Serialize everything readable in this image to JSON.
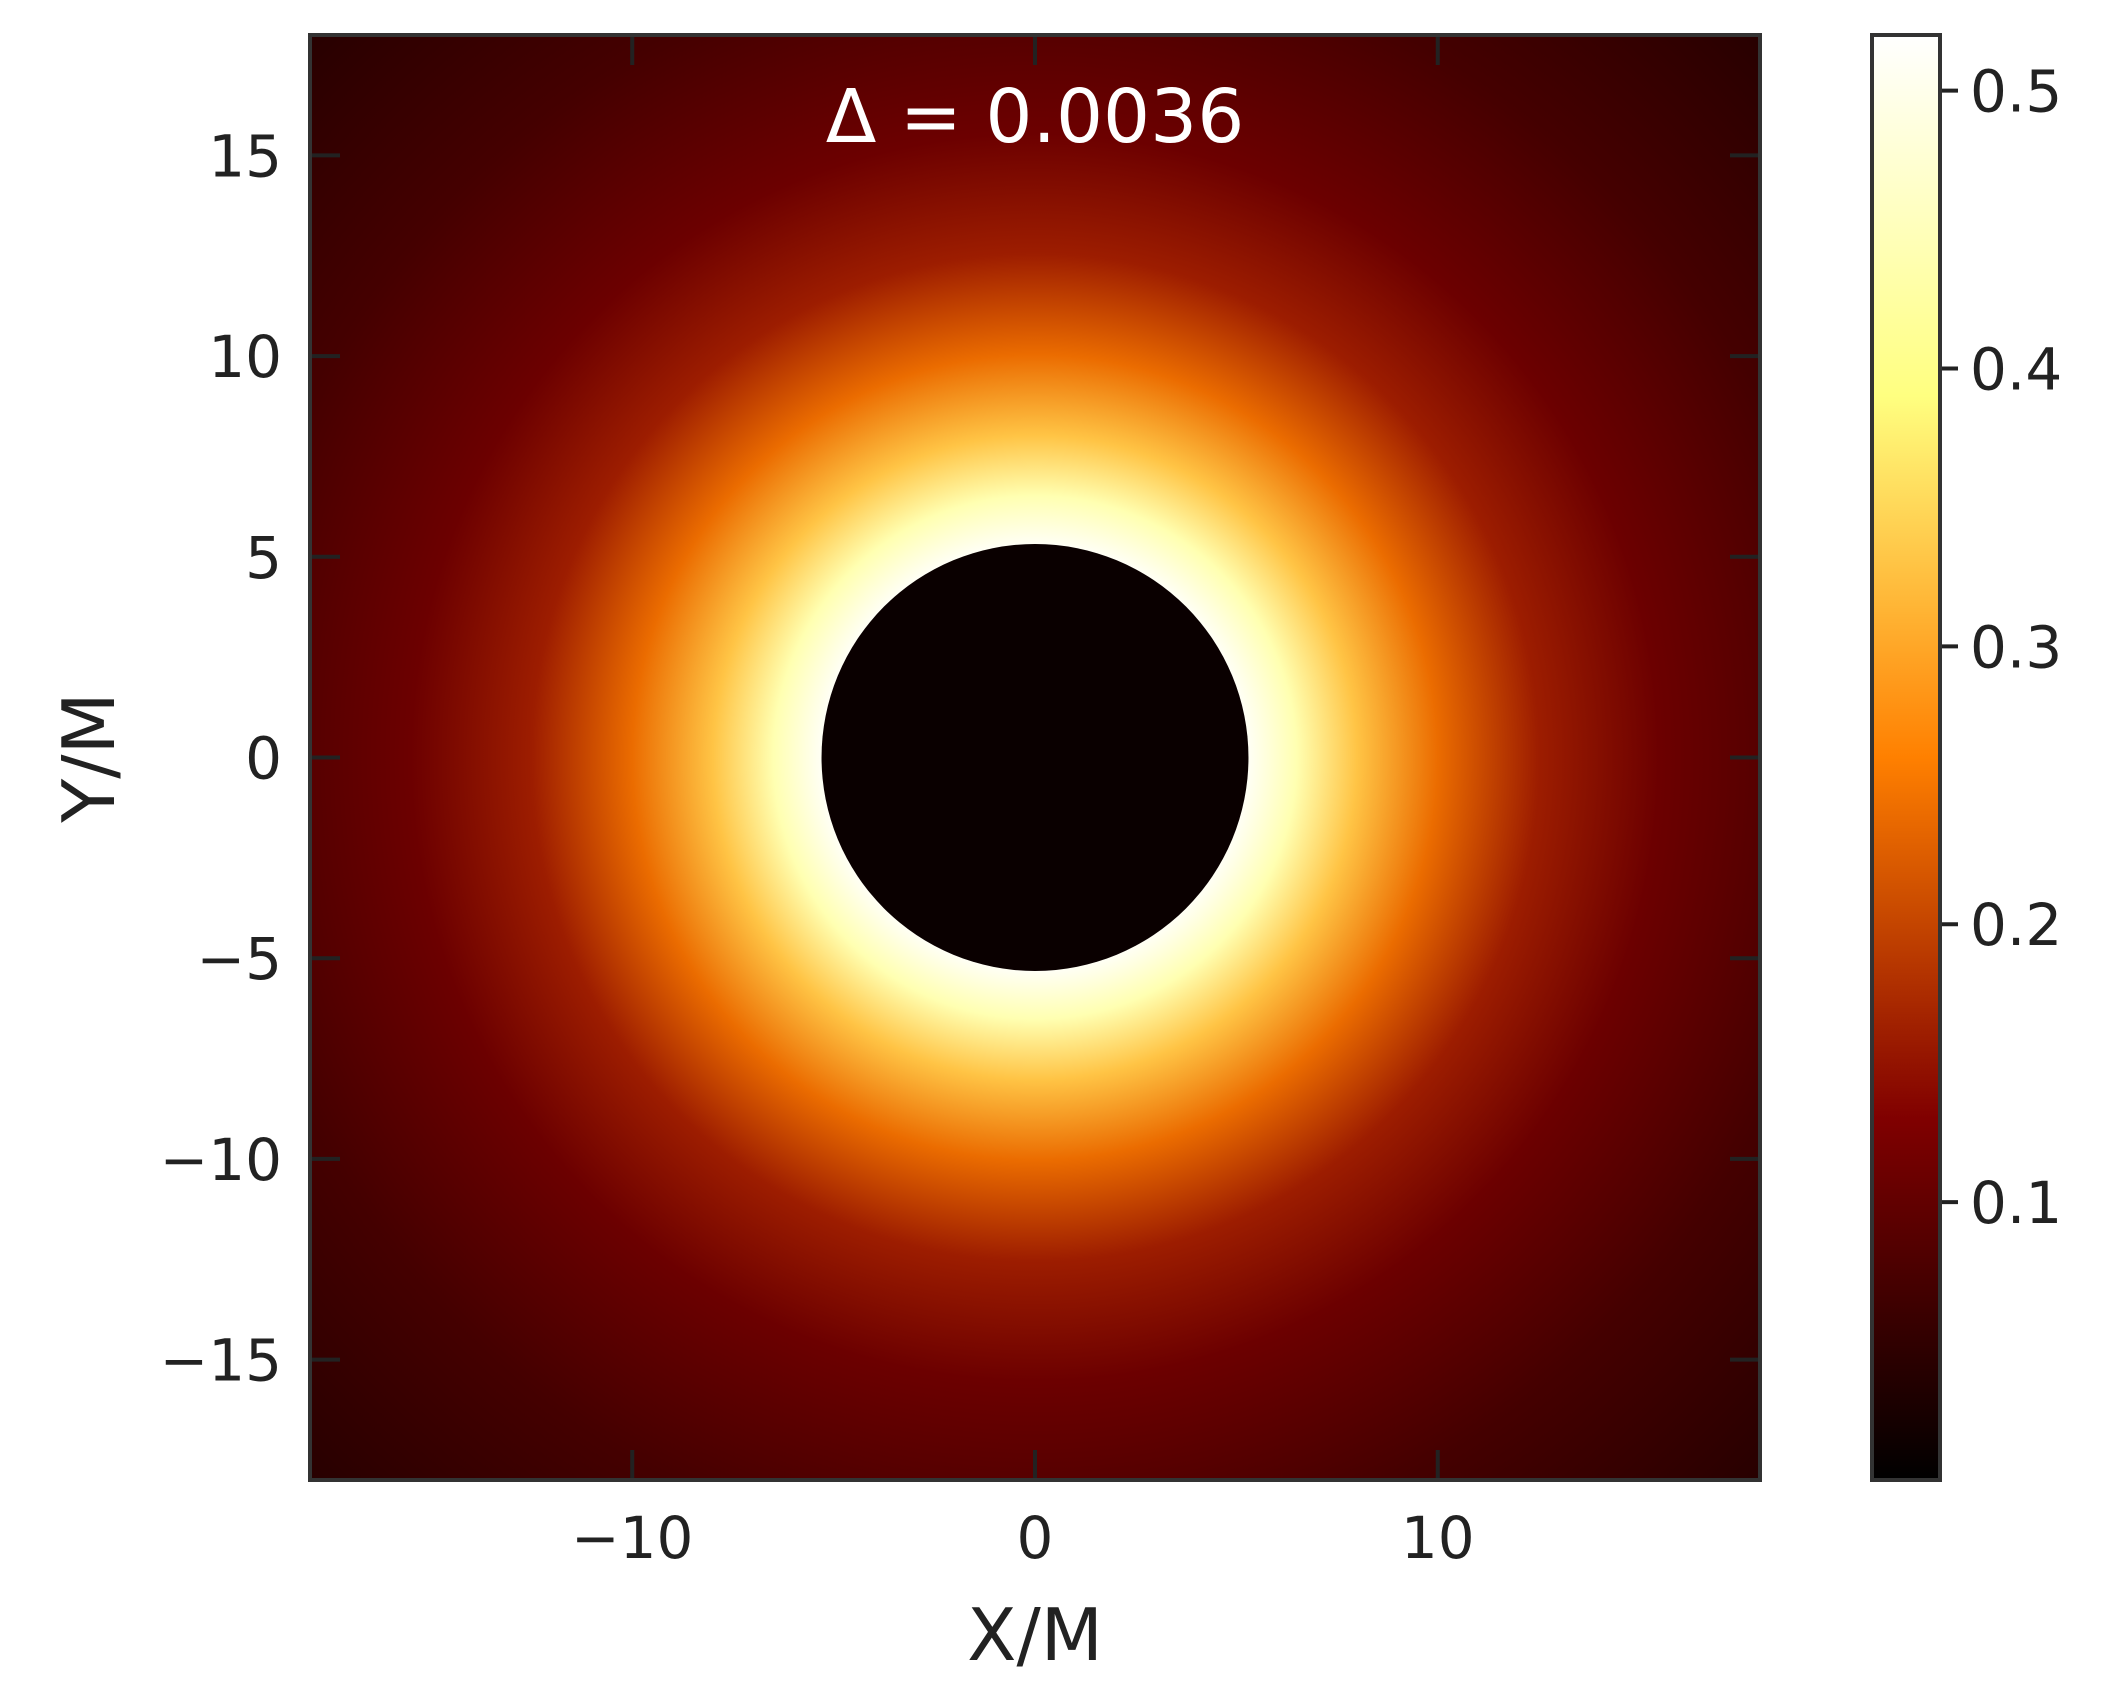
{
  "chart_data": {
    "type": "heatmap",
    "subtype": "black-hole-shadow-image",
    "annotation": "Δ = 0.0036",
    "xlabel": "X/M",
    "ylabel": "Y/M",
    "xlim": [
      -18,
      18
    ],
    "ylim": [
      -18,
      18
    ],
    "xticks": [
      -10,
      0,
      10
    ],
    "xtick_labels": [
      "−10",
      "0",
      "10"
    ],
    "yticks": [
      15,
      10,
      5,
      0,
      -5,
      -10,
      -15
    ],
    "ytick_labels": [
      "15",
      "10",
      "5",
      "0",
      "−5",
      "−10",
      "−15"
    ],
    "shadow": {
      "center": [
        0,
        0
      ],
      "radius": 5.3
    },
    "intensity_profile": [
      {
        "r": 5.3,
        "value": 0.51
      },
      {
        "r": 6.5,
        "value": 0.44
      },
      {
        "r": 8.0,
        "value": 0.33
      },
      {
        "r": 10.0,
        "value": 0.24
      },
      {
        "r": 12.5,
        "value": 0.16
      },
      {
        "r": 15.5,
        "value": 0.11
      },
      {
        "r": 20.0,
        "value": 0.07
      },
      {
        "r": 25.5,
        "value": 0.04
      }
    ],
    "shadow_value": 0.01,
    "colorbar": {
      "colormap": "afmhot",
      "range": [
        0.0,
        0.52
      ],
      "ticks": [
        0.1,
        0.2,
        0.3,
        0.4,
        0.5
      ],
      "tick_labels": [
        "0.1",
        "0.2",
        "0.3",
        "0.4",
        "0.5"
      ]
    },
    "grid": false,
    "tick_direction": "in"
  }
}
